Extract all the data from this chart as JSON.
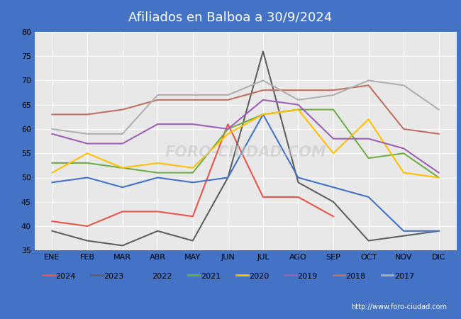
{
  "title": "Afiliados en Balboa a 30/9/2024",
  "ylim": [
    35,
    80
  ],
  "yticks": [
    35,
    40,
    45,
    50,
    55,
    60,
    65,
    70,
    75,
    80
  ],
  "months": [
    "ENE",
    "FEB",
    "MAR",
    "ABR",
    "MAY",
    "JUN",
    "JUL",
    "AGO",
    "SEP",
    "OCT",
    "NOV",
    "DIC"
  ],
  "watermark": "http://www.foro-ciudad.com",
  "series": {
    "2024": {
      "color": "#e8534a",
      "data": [
        41,
        40,
        43,
        43,
        42,
        61,
        46,
        46,
        42,
        null,
        null,
        null
      ]
    },
    "2023": {
      "color": "#606060",
      "data": [
        39,
        37,
        36,
        39,
        37,
        50,
        76,
        49,
        45,
        37,
        38,
        39
      ]
    },
    "2022": {
      "color": "#4472c4",
      "data": [
        49,
        50,
        48,
        50,
        49,
        50,
        63,
        50,
        48,
        46,
        39,
        39
      ]
    },
    "2021": {
      "color": "#70ad47",
      "data": [
        53,
        53,
        52,
        51,
        51,
        60,
        63,
        64,
        64,
        54,
        55,
        50
      ]
    },
    "2020": {
      "color": "#ffc000",
      "data": [
        51,
        55,
        52,
        53,
        52,
        59,
        63,
        64,
        55,
        62,
        51,
        50
      ]
    },
    "2019": {
      "color": "#9e5fb5",
      "data": [
        59,
        57,
        57,
        61,
        61,
        60,
        66,
        65,
        58,
        58,
        56,
        51
      ]
    },
    "2018": {
      "color": "#c07060",
      "data": [
        63,
        63,
        64,
        66,
        66,
        66,
        68,
        68,
        68,
        69,
        60,
        59
      ]
    },
    "2017": {
      "color": "#b0b0b0",
      "data": [
        60,
        59,
        59,
        67,
        67,
        67,
        70,
        66,
        67,
        70,
        69,
        64
      ]
    }
  },
  "legend_order": [
    "2024",
    "2023",
    "2022",
    "2021",
    "2020",
    "2019",
    "2018",
    "2017"
  ],
  "header_color": "#4472c4",
  "plot_bg": "#e8e8e8",
  "grid_color": "#ffffff",
  "footer_color": "#4472c4",
  "watermark_text_color": "#c8c8c8",
  "title_fontsize": 13,
  "tick_fontsize": 8,
  "legend_fontsize": 8,
  "linewidth": 1.5
}
